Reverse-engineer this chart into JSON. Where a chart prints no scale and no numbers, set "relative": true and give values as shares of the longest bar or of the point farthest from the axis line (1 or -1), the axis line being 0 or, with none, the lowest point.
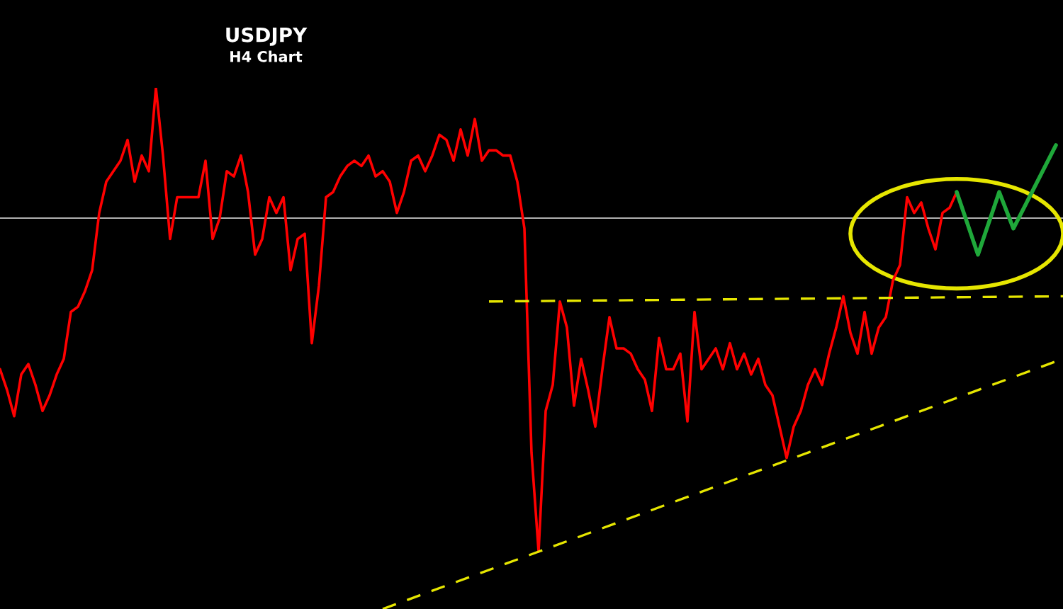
{
  "chart_data": {
    "type": "line",
    "title": "USDJPY",
    "subtitle": "H4 Chart",
    "relative": true,
    "categories": [
      null,
      null,
      null,
      null,
      null,
      null,
      null,
      null,
      null,
      null,
      null,
      null,
      null,
      null,
      null,
      null,
      null,
      null,
      null,
      null,
      null,
      null,
      null,
      null,
      null,
      null,
      null,
      null,
      null,
      null,
      null,
      null,
      null,
      null,
      null,
      null,
      null,
      null,
      null,
      null,
      null,
      null,
      null,
      null,
      null,
      null,
      null,
      null,
      null,
      null,
      null,
      null,
      null,
      null,
      null,
      null,
      null,
      null,
      null,
      null,
      null,
      null,
      null,
      null,
      null,
      null,
      null,
      null,
      null,
      null,
      null,
      null,
      null,
      null,
      null,
      null,
      null,
      null,
      null,
      null,
      null,
      null,
      null,
      null,
      null,
      null,
      null,
      null,
      null,
      null,
      null,
      null,
      null,
      null,
      null,
      null,
      null,
      null,
      null,
      null,
      null,
      null,
      null,
      null,
      null,
      null,
      null,
      null,
      null,
      null,
      null,
      null,
      null,
      null,
      null,
      null,
      null,
      null,
      null,
      null,
      null,
      null,
      null,
      null,
      null,
      null,
      null,
      null,
      null,
      null,
      null,
      null,
      null,
      null,
      null,
      null,
      null,
      null,
      null,
      null,
      null,
      null,
      null,
      null,
      null,
      null,
      null,
      null,
      null,
      null,
      null
    ],
    "series": [
      {
        "color": "#ff0000",
        "values": [
          0.46,
          0.42,
          0.37,
          0.45,
          0.47,
          0.43,
          0.38,
          0.41,
          0.45,
          0.48,
          0.57,
          0.58,
          0.61,
          0.65,
          0.76,
          0.82,
          0.84,
          0.86,
          0.9,
          0.82,
          0.87,
          0.84,
          1.0,
          0.87,
          0.71,
          0.79,
          0.79,
          0.79,
          0.79,
          0.86,
          0.71,
          0.75,
          0.84,
          0.83,
          0.87,
          0.8,
          0.68,
          0.71,
          0.79,
          0.76,
          0.79,
          0.65,
          0.71,
          0.72,
          0.51,
          0.62,
          0.79,
          0.8,
          0.83,
          0.85,
          0.86,
          0.85,
          0.87,
          0.83,
          0.84,
          0.82,
          0.76,
          0.8,
          0.86,
          0.87,
          0.84,
          0.87,
          0.91,
          0.9,
          0.86,
          0.92,
          0.87,
          0.94,
          0.86,
          0.88,
          0.88,
          0.87,
          0.87,
          0.82,
          0.73,
          0.3,
          0.11,
          0.38,
          0.43,
          0.59,
          0.54,
          0.39,
          0.48,
          0.42,
          0.35,
          0.46,
          0.56,
          0.5,
          0.5,
          0.49,
          0.46,
          0.44,
          0.38,
          0.52,
          0.46,
          0.46,
          0.49,
          0.36,
          0.57,
          0.46,
          0.48,
          0.5,
          0.46,
          0.51,
          0.46,
          0.49,
          0.45,
          0.48,
          0.43,
          0.41,
          0.35,
          0.29,
          0.35,
          0.38,
          0.43,
          0.46,
          0.43,
          0.49,
          0.54,
          0.6,
          0.53,
          0.49,
          0.57,
          0.49,
          0.54,
          0.56,
          0.63,
          0.66,
          0.79,
          0.76,
          0.78,
          0.73,
          0.69,
          0.76,
          0.77,
          0.8,
          null,
          null,
          null,
          null,
          null,
          null,
          null,
          null,
          null,
          null,
          null,
          null,
          null,
          null,
          null
        ]
      },
      {
        "color": "#1fa83a",
        "values": [
          null,
          null,
          null,
          null,
          null,
          null,
          null,
          null,
          null,
          null,
          null,
          null,
          null,
          null,
          null,
          null,
          null,
          null,
          null,
          null,
          null,
          null,
          null,
          null,
          null,
          null,
          null,
          null,
          null,
          null,
          null,
          null,
          null,
          null,
          null,
          null,
          null,
          null,
          null,
          null,
          null,
          null,
          null,
          null,
          null,
          null,
          null,
          null,
          null,
          null,
          null,
          null,
          null,
          null,
          null,
          null,
          null,
          null,
          null,
          null,
          null,
          null,
          null,
          null,
          null,
          null,
          null,
          null,
          null,
          null,
          null,
          null,
          null,
          null,
          null,
          null,
          null,
          null,
          null,
          null,
          null,
          null,
          null,
          null,
          null,
          null,
          null,
          null,
          null,
          null,
          null,
          null,
          null,
          null,
          null,
          null,
          null,
          null,
          null,
          null,
          null,
          null,
          null,
          null,
          null,
          null,
          null,
          null,
          null,
          null,
          null,
          null,
          null,
          null,
          null,
          null,
          null,
          null,
          null,
          null,
          null,
          null,
          null,
          null,
          null,
          null,
          null,
          null,
          null,
          null,
          null,
          null,
          null,
          null,
          null,
          0.8,
          null,
          null,
          0.68,
          null,
          null,
          0.8,
          null,
          0.73,
          null,
          null,
          null,
          null,
          null,
          0.89,
          null
        ]
      },
      {
        "color": "#e6e600",
        "line_style": "dashed",
        "values": [
          null,
          null,
          null,
          null,
          null,
          null,
          null,
          null,
          null,
          null,
          null,
          null,
          null,
          null,
          null,
          null,
          null,
          null,
          null,
          null,
          null,
          null,
          null,
          null,
          null,
          null,
          null,
          null,
          null,
          null,
          null,
          null,
          null,
          null,
          null,
          null,
          null,
          null,
          null,
          null,
          null,
          null,
          null,
          null,
          null,
          null,
          null,
          null,
          null,
          null,
          null,
          null,
          null,
          null,
          null,
          null,
          null,
          null,
          null,
          null,
          null,
          null,
          null,
          null,
          null,
          null,
          null,
          null,
          null,
          0.59,
          null,
          null,
          null,
          null,
          null,
          null,
          null,
          null,
          null,
          null,
          null,
          null,
          null,
          null,
          null,
          null,
          null,
          null,
          null,
          null,
          null,
          null,
          null,
          null,
          null,
          null,
          null,
          null,
          null,
          null,
          null,
          null,
          null,
          null,
          null,
          null,
          null,
          null,
          null,
          null,
          null,
          null,
          null,
          null,
          null,
          null,
          null,
          null,
          null,
          null,
          null,
          null,
          null,
          null,
          null,
          null,
          null,
          null,
          null,
          null,
          null,
          null,
          null,
          null,
          null,
          null,
          null,
          null,
          null,
          null,
          null,
          null,
          null,
          null,
          null,
          null,
          null,
          null,
          null,
          null,
          0.6
        ]
      },
      {
        "color": "#e6e600",
        "line_style": "dashed",
        "values": [
          null,
          null,
          null,
          null,
          null,
          null,
          null,
          null,
          null,
          null,
          null,
          null,
          null,
          null,
          null,
          null,
          null,
          null,
          null,
          null,
          null,
          null,
          null,
          null,
          null,
          null,
          null,
          null,
          null,
          null,
          null,
          null,
          null,
          null,
          null,
          null,
          null,
          null,
          null,
          null,
          null,
          null,
          null,
          null,
          null,
          null,
          null,
          null,
          null,
          null,
          null,
          null,
          null,
          null,
          0.0,
          null,
          null,
          null,
          null,
          null,
          null,
          null,
          null,
          null,
          null,
          null,
          null,
          null,
          null,
          null,
          null,
          null,
          null,
          null,
          null,
          null,
          null,
          null,
          null,
          null,
          null,
          null,
          null,
          null,
          null,
          null,
          null,
          null,
          null,
          null,
          null,
          null,
          null,
          null,
          null,
          null,
          null,
          null,
          null,
          null,
          null,
          null,
          null,
          null,
          null,
          null,
          null,
          null,
          null,
          null,
          null,
          null,
          null,
          null,
          null,
          null,
          null,
          null,
          null,
          null,
          null,
          null,
          null,
          null,
          null,
          null,
          null,
          null,
          null,
          null,
          null,
          null,
          null,
          null,
          null,
          null,
          null,
          null,
          null,
          null,
          null,
          null,
          null,
          null,
          null,
          null,
          null,
          null,
          null,
          null,
          0.48
        ]
      }
    ],
    "ref_lines": [
      {
        "axis": "y",
        "value": 0.75,
        "color": "#b0b0b0"
      }
    ]
  }
}
